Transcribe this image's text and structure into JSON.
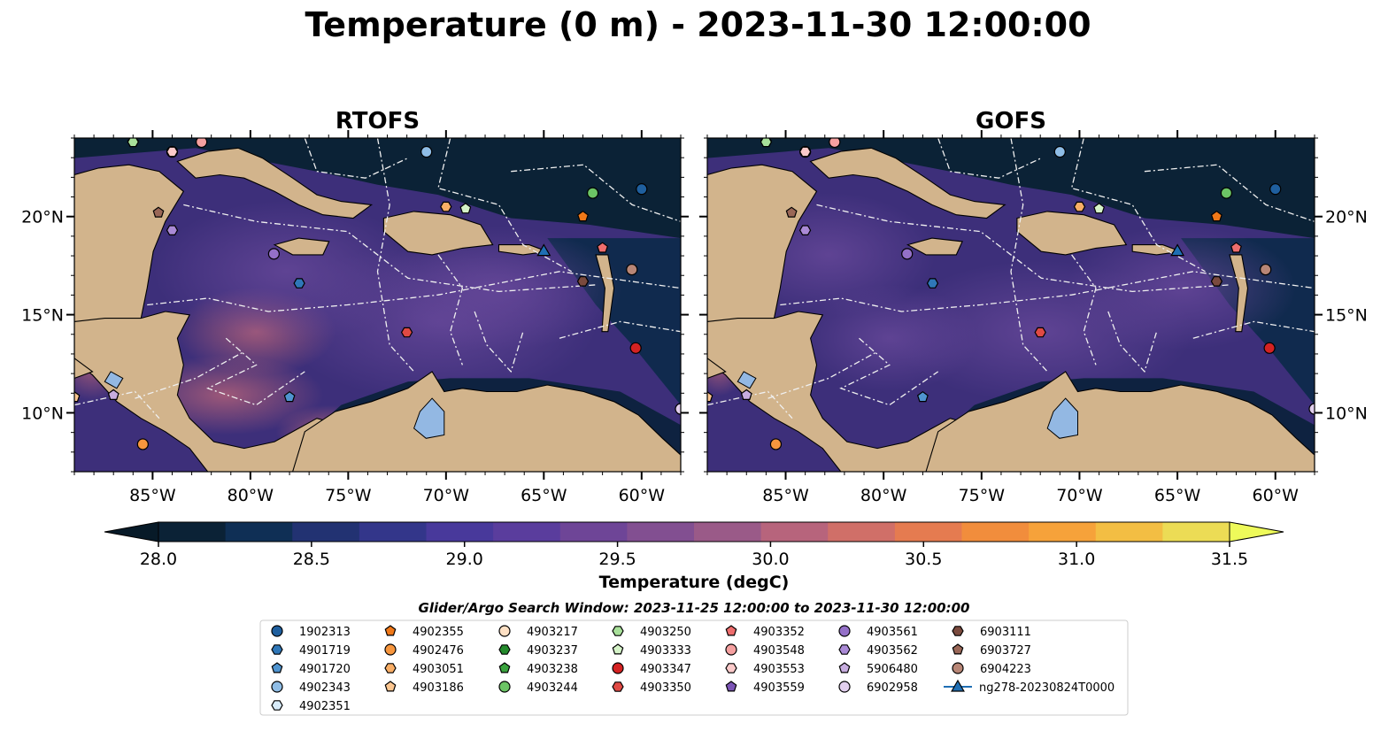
{
  "chart_data": {
    "type": "heatmap",
    "title": "Temperature (0 m) - 2023-11-30 12:00:00",
    "panels": [
      {
        "name": "RTOFS"
      },
      {
        "name": "GOFS"
      }
    ],
    "xlim": [
      -89,
      -58
    ],
    "ylim": [
      7,
      24
    ],
    "x_ticks": [
      -85,
      -80,
      -75,
      -70,
      -65,
      -60
    ],
    "x_tick_labels": [
      "85°W",
      "80°W",
      "75°W",
      "70°W",
      "65°W",
      "60°W"
    ],
    "y_ticks": [
      10,
      15,
      20
    ],
    "y_tick_labels": [
      "10°N",
      "15°N",
      "20°N"
    ],
    "colorbar": {
      "label": "Temperature (degC)",
      "min": 28.0,
      "max": 31.5,
      "step": 0.25,
      "extend": "both",
      "tick_values": [
        28.0,
        28.5,
        29.0,
        29.5,
        30.0,
        30.5,
        31.0,
        31.5
      ],
      "tick_labels": [
        "28.0",
        "28.5",
        "29.0",
        "29.5",
        "30.0",
        "30.5",
        "31.0",
        "31.5"
      ],
      "colors": [
        "#0b2236",
        "#0f2f55",
        "#223272",
        "#33368a",
        "#48399b",
        "#5a3d9d",
        "#6e4597",
        "#824f91",
        "#9a5a88",
        "#b7647c",
        "#d06f68",
        "#e57b50",
        "#f18d3c",
        "#f6a23a",
        "#f3be43",
        "#ecdc55"
      ],
      "under_color": "#071a28",
      "over_color": "#eefa5a"
    },
    "legend": {
      "title": "Glider/Argo Search Window: 2023-11-25 12:00:00 to 2023-11-30 12:00:00",
      "entries": [
        {
          "label": "1902313",
          "marker": "circle",
          "color": "#1f5f9e"
        },
        {
          "label": "4901719",
          "marker": "hexagon",
          "color": "#2f77b8"
        },
        {
          "label": "4901720",
          "marker": "pentagon",
          "color": "#4f94d0"
        },
        {
          "label": "4902343",
          "marker": "circle",
          "color": "#8fbde6"
        },
        {
          "label": "4902351",
          "marker": "hexagon",
          "color": "#d8ecfa"
        },
        {
          "label": "4902355",
          "marker": "pentagon",
          "color": "#f07818"
        },
        {
          "label": "4902476",
          "marker": "circle",
          "color": "#f7963e"
        },
        {
          "label": "4903051",
          "marker": "hexagon",
          "color": "#f9ae66"
        },
        {
          "label": "4903186",
          "marker": "pentagon",
          "color": "#fcc690"
        },
        {
          "label": "4903217",
          "marker": "circle",
          "color": "#fde0c4"
        },
        {
          "label": "4903237",
          "marker": "hexagon",
          "color": "#248a2c"
        },
        {
          "label": "4903238",
          "marker": "pentagon",
          "color": "#3aa33e"
        },
        {
          "label": "4903244",
          "marker": "circle",
          "color": "#6cc465"
        },
        {
          "label": "4903250",
          "marker": "hexagon",
          "color": "#a8e09a"
        },
        {
          "label": "4903333",
          "marker": "pentagon",
          "color": "#d5f3c8"
        },
        {
          "label": "4903347",
          "marker": "circle",
          "color": "#d42222"
        },
        {
          "label": "4903350",
          "marker": "hexagon",
          "color": "#e04a44"
        },
        {
          "label": "4903352",
          "marker": "pentagon",
          "color": "#ee6d6d"
        },
        {
          "label": "4903548",
          "marker": "circle",
          "color": "#f5a0a0"
        },
        {
          "label": "4903553",
          "marker": "hexagon",
          "color": "#fbcaca"
        },
        {
          "label": "4903559",
          "marker": "pentagon",
          "color": "#7c55b6"
        },
        {
          "label": "4903561",
          "marker": "circle",
          "color": "#9470c8"
        },
        {
          "label": "4903562",
          "marker": "hexagon",
          "color": "#aa8ad6"
        },
        {
          "label": "5906480",
          "marker": "pentagon",
          "color": "#c7addf"
        },
        {
          "label": "6902958",
          "marker": "circle",
          "color": "#e2cfee"
        },
        {
          "label": "6903111",
          "marker": "hexagon",
          "color": "#7a4a3e"
        },
        {
          "label": "6903727",
          "marker": "pentagon",
          "color": "#9a6757"
        },
        {
          "label": "6904223",
          "marker": "circle",
          "color": "#b88676"
        },
        {
          "label": "ng278-20230824T0000",
          "marker": "triangle-line",
          "color": "#1f6fb4"
        }
      ]
    },
    "points": [
      {
        "id": "1902313",
        "lon": -60.0,
        "lat": 21.4
      },
      {
        "id": "4901719",
        "lon": -77.5,
        "lat": 16.6
      },
      {
        "id": "4901720",
        "lon": -78.0,
        "lat": 10.8
      },
      {
        "id": "4902343",
        "lon": -71.0,
        "lat": 23.3
      },
      {
        "id": "4902351",
        "lon": -58.0,
        "lat": 10.2
      },
      {
        "id": "4902355",
        "lon": -63.0,
        "lat": 20.0
      },
      {
        "id": "4902476",
        "lon": -85.5,
        "lat": 8.4
      },
      {
        "id": "4903051",
        "lon": -70.0,
        "lat": 20.5
      },
      {
        "id": "4903186",
        "lon": -89.0,
        "lat": 10.8
      },
      {
        "id": "4903217",
        "lon": -84.0,
        "lat": 23.3
      },
      {
        "id": "4903237",
        "lon": -82.5,
        "lat": 23.8
      },
      {
        "id": "4903238",
        "lon": -86.0,
        "lat": 23.8
      },
      {
        "id": "4903244",
        "lon": -62.5,
        "lat": 21.2
      },
      {
        "id": "4903250",
        "lon": -86.0,
        "lat": 23.8
      },
      {
        "id": "4903333",
        "lon": -69.0,
        "lat": 20.4
      },
      {
        "id": "4903347",
        "lon": -60.3,
        "lat": 13.3
      },
      {
        "id": "4903350",
        "lon": -72.0,
        "lat": 14.1
      },
      {
        "id": "4903352",
        "lon": -62.0,
        "lat": 18.4
      },
      {
        "id": "4903548",
        "lon": -82.5,
        "lat": 23.8
      },
      {
        "id": "4903553",
        "lon": -84.0,
        "lat": 23.3
      },
      {
        "id": "4903559",
        "lon": -87.0,
        "lat": 10.9
      },
      {
        "id": "4903561",
        "lon": -78.8,
        "lat": 18.1
      },
      {
        "id": "4903562",
        "lon": -84.0,
        "lat": 19.3
      },
      {
        "id": "5906480",
        "lon": -87.0,
        "lat": 10.9
      },
      {
        "id": "6902958",
        "lon": -58.0,
        "lat": 10.2
      },
      {
        "id": "6903111",
        "lon": -63.0,
        "lat": 16.7
      },
      {
        "id": "6903727",
        "lon": -84.7,
        "lat": 20.2
      },
      {
        "id": "6904223",
        "lon": -60.5,
        "lat": 17.3
      },
      {
        "id": "ng278-20230824T0000",
        "lon": -65.0,
        "lat": 18.2
      }
    ]
  }
}
